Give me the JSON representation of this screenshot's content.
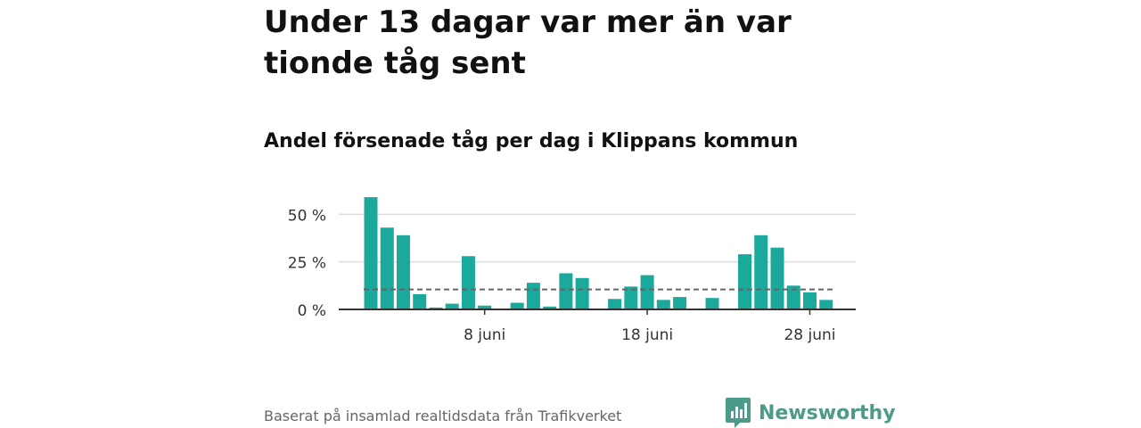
{
  "title": "Under 13 dagar var mer än var tionde tåg sent",
  "subtitle": "Andel försenade tåg per dag i Klippans kommun",
  "source": "Baserat på insamlad realtidsdata från Trafikverket",
  "brand": {
    "name": "Newsworthy",
    "color": "#4c9a8a",
    "logo_icon": "bar-chart-speech-bubble-icon"
  },
  "colors": {
    "bar": "#1aa99a",
    "reference_line": "#666666",
    "grid": "#dddddd",
    "axis": "#333333"
  },
  "chart_data": {
    "type": "bar",
    "x": [
      "2018-06-01",
      "2018-06-02",
      "2018-06-03",
      "2018-06-04",
      "2018-06-05",
      "2018-06-06",
      "2018-06-07",
      "2018-06-08",
      "2018-06-09",
      "2018-06-10",
      "2018-06-11",
      "2018-06-12",
      "2018-06-13",
      "2018-06-14",
      "2018-06-15",
      "2018-06-16",
      "2018-06-17",
      "2018-06-18",
      "2018-06-19",
      "2018-06-20",
      "2018-06-21",
      "2018-06-22",
      "2018-06-23",
      "2018-06-24",
      "2018-06-25",
      "2018-06-26",
      "2018-06-27",
      "2018-06-28",
      "2018-06-29",
      "2018-06-30"
    ],
    "values": [
      59,
      43,
      39,
      8,
      1,
      3,
      28,
      2,
      0,
      3.5,
      14,
      1.5,
      19,
      16.5,
      0,
      5.5,
      12,
      18,
      5,
      6.5,
      0,
      6,
      0,
      29,
      39,
      32.5,
      12.5,
      9,
      5,
      null
    ],
    "reference_line": 10.5,
    "ylim": [
      0,
      60
    ],
    "yticks": [
      0,
      25,
      50
    ],
    "ytick_labels": [
      "0 %",
      "25 %",
      "50 %"
    ],
    "xticks": [
      {
        "date": "2018-06-08",
        "label": "8 juni"
      },
      {
        "date": "2018-06-18",
        "label": "18 juni"
      },
      {
        "date": "2018-06-28",
        "label": "28 juni"
      }
    ],
    "grid": true,
    "legend": "none"
  }
}
